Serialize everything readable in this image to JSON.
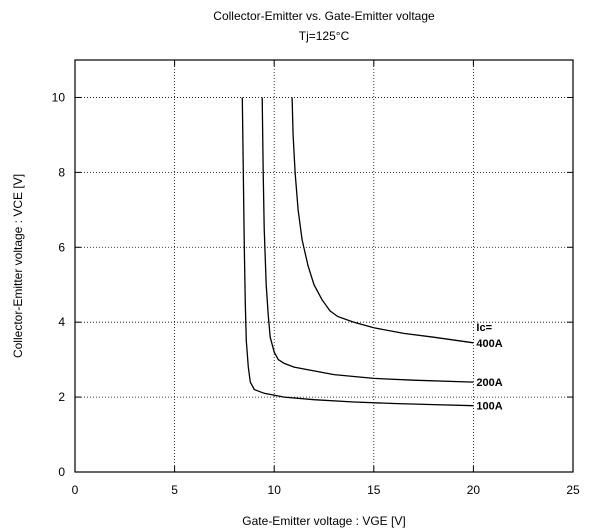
{
  "chart_data": {
    "type": "line",
    "title": "Collector-Emitter  vs.  Gate-Emitter  voltage",
    "subtitle": "Tj=125°C",
    "xlabel": "Gate-Emitter  voltage  :  VGE [V]",
    "ylabel": "Collector-Emitter  voltage  :    VCE [V]",
    "xlim": [
      0,
      25
    ],
    "ylim": [
      0,
      11
    ],
    "xticks": [
      0,
      5,
      10,
      15,
      20,
      25
    ],
    "yticks": [
      0,
      2,
      4,
      6,
      8,
      10
    ],
    "xtick_labels": [
      "0",
      "5",
      "10",
      "15",
      "20",
      "25"
    ],
    "ytick_labels": [
      "0",
      "2",
      "4",
      "6",
      "8",
      "10"
    ],
    "grid": true,
    "legend_title": "Ic=",
    "series": [
      {
        "name": "100A",
        "x": [
          8.4,
          8.45,
          8.5,
          8.55,
          8.6,
          8.7,
          8.8,
          9.0,
          9.5,
          10.5,
          12,
          14,
          16,
          18,
          20
        ],
        "y": [
          10.0,
          8.0,
          6.0,
          4.5,
          3.5,
          2.8,
          2.4,
          2.2,
          2.1,
          2.0,
          1.93,
          1.87,
          1.83,
          1.8,
          1.77
        ]
      },
      {
        "name": "200A",
        "x": [
          9.4,
          9.45,
          9.5,
          9.6,
          9.7,
          9.8,
          10.0,
          10.2,
          10.5,
          11,
          12,
          13,
          15,
          17,
          20
        ],
        "y": [
          10.0,
          8.0,
          6.5,
          5.0,
          4.2,
          3.6,
          3.2,
          3.0,
          2.9,
          2.8,
          2.7,
          2.6,
          2.5,
          2.45,
          2.4
        ]
      },
      {
        "name": "400A",
        "x": [
          10.9,
          10.95,
          11.05,
          11.2,
          11.4,
          11.7,
          12.0,
          12.4,
          12.8,
          13.2,
          14,
          15,
          16.5,
          18,
          20
        ],
        "y": [
          10.0,
          9.0,
          8.0,
          7.0,
          6.2,
          5.5,
          5.0,
          4.6,
          4.3,
          4.15,
          4.0,
          3.85,
          3.7,
          3.6,
          3.45
        ]
      }
    ]
  }
}
